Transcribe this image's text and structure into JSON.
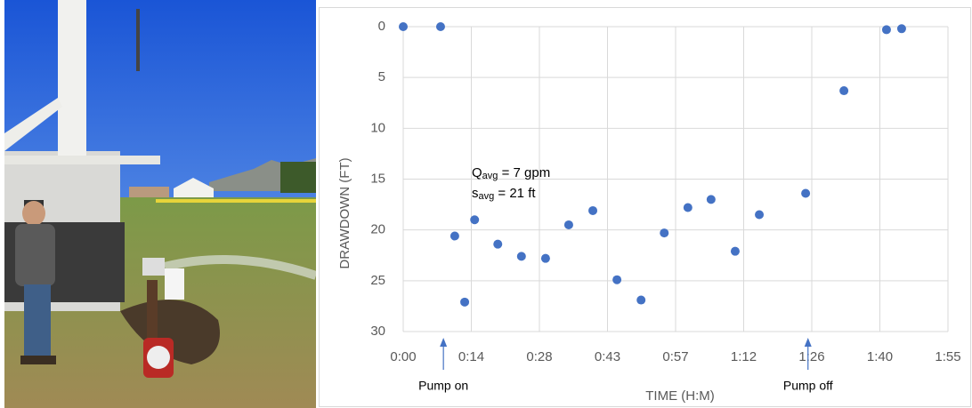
{
  "chart_data": {
    "type": "scatter",
    "x_label": "TIME (H:M)",
    "y_label": "DRAWDOWN (FT)",
    "x": [
      0,
      7.9,
      10.9,
      13.0,
      15.1,
      20.0,
      25.0,
      30.1,
      35.0,
      40.1,
      45.2,
      50.3,
      55.2,
      60.2,
      65.1,
      70.2,
      75.3,
      85.1,
      93.2,
      102.2,
      105.4
    ],
    "series": [
      {
        "color": "#4472c4",
        "values": [
          0,
          0,
          20.6,
          27.1,
          19.0,
          21.4,
          22.6,
          22.8,
          19.5,
          18.1,
          24.9,
          26.9,
          20.3,
          17.8,
          17.0,
          22.1,
          18.5,
          16.4,
          6.3,
          0.3,
          0.2
        ]
      }
    ],
    "xlim": [
      0,
      115.2
    ],
    "xticks": [
      {
        "value": 0,
        "label": "0:00"
      },
      {
        "value": 14.4,
        "label": "0:14"
      },
      {
        "value": 28.8,
        "label": "0:28"
      },
      {
        "value": 43.2,
        "label": "0:43"
      },
      {
        "value": 57.6,
        "label": "0:57"
      },
      {
        "value": 72,
        "label": "1:12"
      },
      {
        "value": 86.4,
        "label": "1:26"
      },
      {
        "value": 100.8,
        "label": "1:40"
      },
      {
        "value": 115.2,
        "label": "1:55"
      }
    ],
    "ylim": [
      0,
      30
    ],
    "yticks": [
      0,
      5,
      10,
      15,
      20,
      25,
      30
    ],
    "y_inverted": true,
    "grid": true,
    "annotations": [
      {
        "symbol": "Q",
        "subscript": "avg",
        "text": " = 7 gpm"
      },
      {
        "symbol": "s",
        "subscript": "avg",
        "text": " = 21 ft"
      }
    ],
    "events": [
      {
        "label": "Pump on",
        "x": 8.5
      },
      {
        "label": "Pump off",
        "x": 85.6
      }
    ]
  }
}
